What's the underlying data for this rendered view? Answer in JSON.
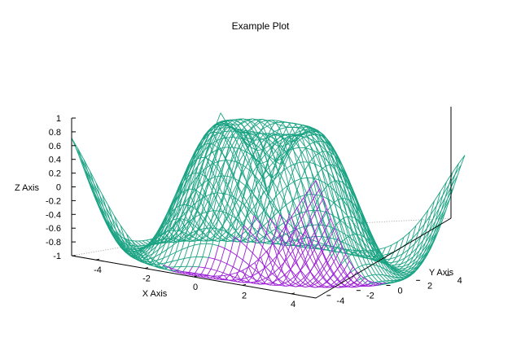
{
  "chart_data": {
    "type": "surface",
    "title": "Example Plot",
    "xlabel": "X Axis",
    "ylabel": "Y Axis",
    "zlabel": "Z Axis",
    "xlim": [
      -5,
      5
    ],
    "ylim": [
      -5,
      5
    ],
    "zlim": [
      -1,
      1
    ],
    "x_ticks": [
      "-4",
      "-2",
      "0",
      "2",
      "4"
    ],
    "y_ticks": [
      "-4",
      "-2",
      "0",
      "2",
      "4"
    ],
    "z_ticks": [
      "1",
      "0.8",
      "0.6",
      "0.4",
      "0.2",
      "0",
      "-0.2",
      "-0.4",
      "-0.6",
      "-0.8",
      "-1"
    ],
    "surface_function": "sin(sqrt(x^2 + y^2))",
    "grid": "off",
    "style": "wireframe",
    "colors": {
      "top": "#1aa383",
      "bottom": "#9b1fd6"
    }
  }
}
